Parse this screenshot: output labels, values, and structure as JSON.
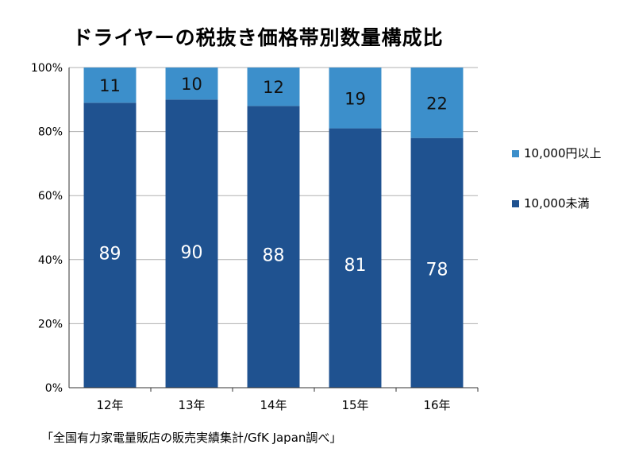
{
  "chart_data": {
    "type": "bar",
    "stacked": true,
    "title": "ドライヤーの税抜き価格帯別数量構成比",
    "categories": [
      "12年",
      "13年",
      "14年",
      "15年",
      "16年"
    ],
    "series": [
      {
        "name": "10,000未満",
        "values": [
          89,
          90,
          88,
          81,
          78
        ],
        "color": "#1f5290"
      },
      {
        "name": "10,000円以上",
        "values": [
          11,
          10,
          12,
          19,
          22
        ],
        "color": "#3c8fcb"
      }
    ],
    "yticks": [
      "0%",
      "20%",
      "40%",
      "60%",
      "80%",
      "100%"
    ],
    "ylim": [
      0,
      100
    ],
    "grid": true,
    "legend": "right"
  },
  "source": "「全国有力家電量販店の販売実績集計/GfK Japan調べ」"
}
